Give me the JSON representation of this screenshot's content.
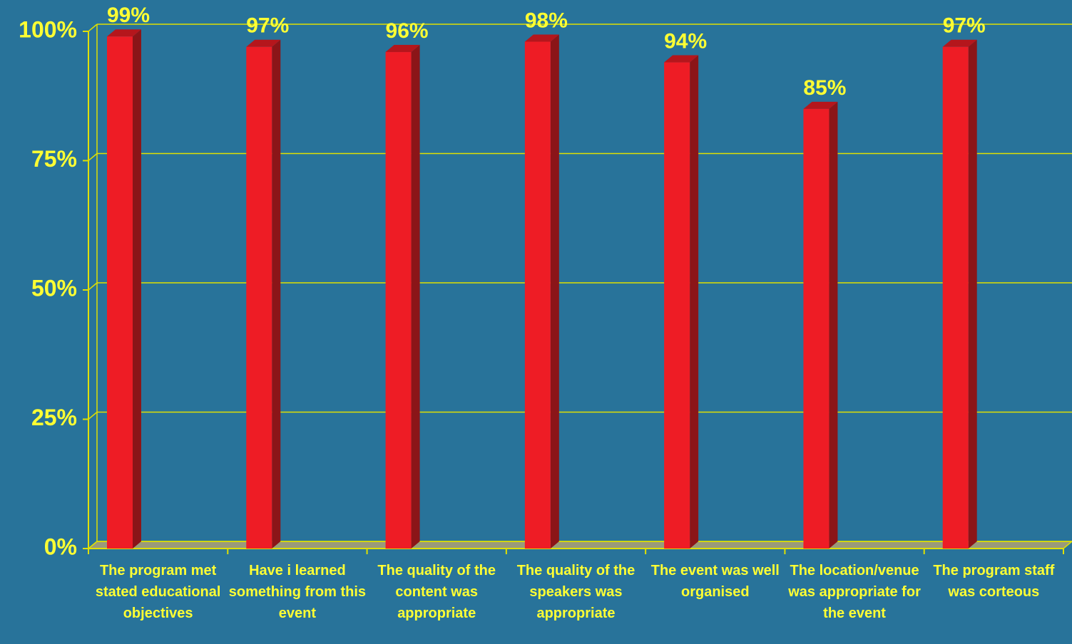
{
  "chart_data": {
    "type": "bar",
    "categories": [
      "The program met stated educational objectives",
      "Have i learned something from this event",
      "The quality of the content was appropriate",
      "The quality of the speakers was appropriate",
      "The event was well organised",
      "The location/venue was appropriate for the event",
      "The program staff was corteous"
    ],
    "values": [
      99,
      97,
      96,
      98,
      94,
      85,
      97
    ],
    "value_labels": [
      "99%",
      "97%",
      "96%",
      "98%",
      "94%",
      "85%",
      "97%"
    ],
    "color": "#ee1c25",
    "ylim": [
      0,
      100
    ],
    "yticks": [
      {
        "value": 0,
        "label": "0%"
      },
      {
        "value": 25,
        "label": "25%"
      },
      {
        "value": 50,
        "label": "50%"
      },
      {
        "value": 75,
        "label": "75%"
      },
      {
        "value": 100,
        "label": "100%"
      }
    ],
    "grid": true
  }
}
